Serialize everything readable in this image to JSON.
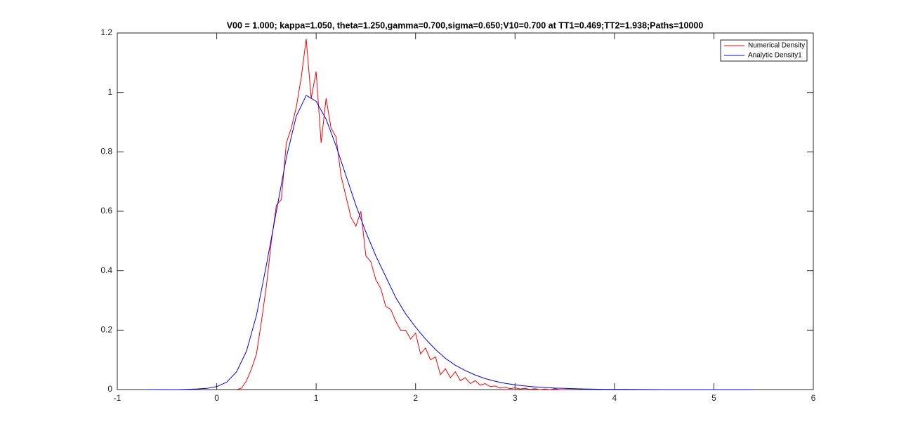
{
  "chart_data": {
    "type": "line",
    "title": "V00 = 1.000; kappa=1.050, theta=1.250,gamma=0.700,sigma=0.650;V10=0.700 at TT1=0.469;TT2=1.938;Paths=10000",
    "xlim": [
      -1,
      6
    ],
    "xticks": [
      -1,
      0,
      1,
      2,
      3,
      4,
      5,
      6
    ],
    "ylim": [
      0,
      1.2
    ],
    "yticks": [
      0,
      0.2,
      0.4,
      0.6,
      0.8,
      1,
      1.2
    ],
    "grid": false,
    "legend": "upper right",
    "series": [
      {
        "name": "Numerical Density",
        "color": "#ff0000",
        "x": [
          0.2,
          0.25,
          0.3,
          0.35,
          0.4,
          0.45,
          0.5,
          0.55,
          0.6,
          0.65,
          0.7,
          0.75,
          0.8,
          0.85,
          0.9,
          0.95,
          1.0,
          1.05,
          1.1,
          1.15,
          1.2,
          1.25,
          1.3,
          1.35,
          1.4,
          1.45,
          1.5,
          1.55,
          1.6,
          1.65,
          1.7,
          1.75,
          1.8,
          1.85,
          1.9,
          1.95,
          2.0,
          2.05,
          2.1,
          2.15,
          2.2,
          2.25,
          2.3,
          2.35,
          2.4,
          2.45,
          2.5,
          2.55,
          2.6,
          2.65,
          2.7,
          2.75,
          2.8,
          2.85,
          2.9,
          2.95,
          3.0,
          3.05,
          3.1,
          3.15,
          3.2,
          3.25,
          3.3,
          3.35,
          3.4,
          3.45,
          3.5
        ],
        "values": [
          0,
          0.005,
          0.03,
          0.07,
          0.12,
          0.23,
          0.35,
          0.5,
          0.62,
          0.64,
          0.83,
          0.88,
          0.95,
          1.05,
          1.18,
          0.98,
          1.07,
          0.83,
          0.98,
          0.88,
          0.85,
          0.72,
          0.65,
          0.58,
          0.55,
          0.6,
          0.45,
          0.43,
          0.37,
          0.34,
          0.28,
          0.27,
          0.23,
          0.2,
          0.2,
          0.17,
          0.19,
          0.12,
          0.14,
          0.1,
          0.11,
          0.05,
          0.07,
          0.04,
          0.06,
          0.03,
          0.04,
          0.02,
          0.03,
          0.015,
          0.02,
          0.01,
          0.012,
          0.005,
          0.008,
          0.003,
          0.006,
          0.002,
          0.004,
          0.001,
          0.003,
          0,
          0.002,
          0,
          0.003,
          0,
          0
        ]
      },
      {
        "name": "Analytic Density1",
        "color": "#0000ff",
        "x": [
          -0.7,
          -0.6,
          -0.5,
          -0.4,
          -0.3,
          -0.2,
          -0.1,
          0,
          0.1,
          0.2,
          0.3,
          0.4,
          0.5,
          0.6,
          0.7,
          0.8,
          0.9,
          1.0,
          1.1,
          1.2,
          1.3,
          1.4,
          1.5,
          1.6,
          1.7,
          1.8,
          1.9,
          2.0,
          2.1,
          2.2,
          2.3,
          2.4,
          2.5,
          2.6,
          2.7,
          2.8,
          2.9,
          3.0,
          3.1,
          3.2,
          3.3,
          3.4,
          3.5,
          3.6,
          3.7,
          3.8,
          3.9,
          4.0,
          4.5,
          5.0,
          5.4
        ],
        "values": [
          0,
          0,
          0,
          0,
          0.001,
          0.002,
          0.004,
          0.01,
          0.025,
          0.06,
          0.13,
          0.25,
          0.42,
          0.6,
          0.78,
          0.92,
          0.99,
          0.97,
          0.91,
          0.82,
          0.72,
          0.62,
          0.53,
          0.45,
          0.38,
          0.31,
          0.255,
          0.21,
          0.17,
          0.135,
          0.105,
          0.082,
          0.064,
          0.049,
          0.037,
          0.028,
          0.021,
          0.016,
          0.012,
          0.009,
          0.007,
          0.005,
          0.004,
          0.003,
          0.002,
          0.0015,
          0.001,
          0.001,
          0,
          0,
          0
        ]
      }
    ]
  }
}
